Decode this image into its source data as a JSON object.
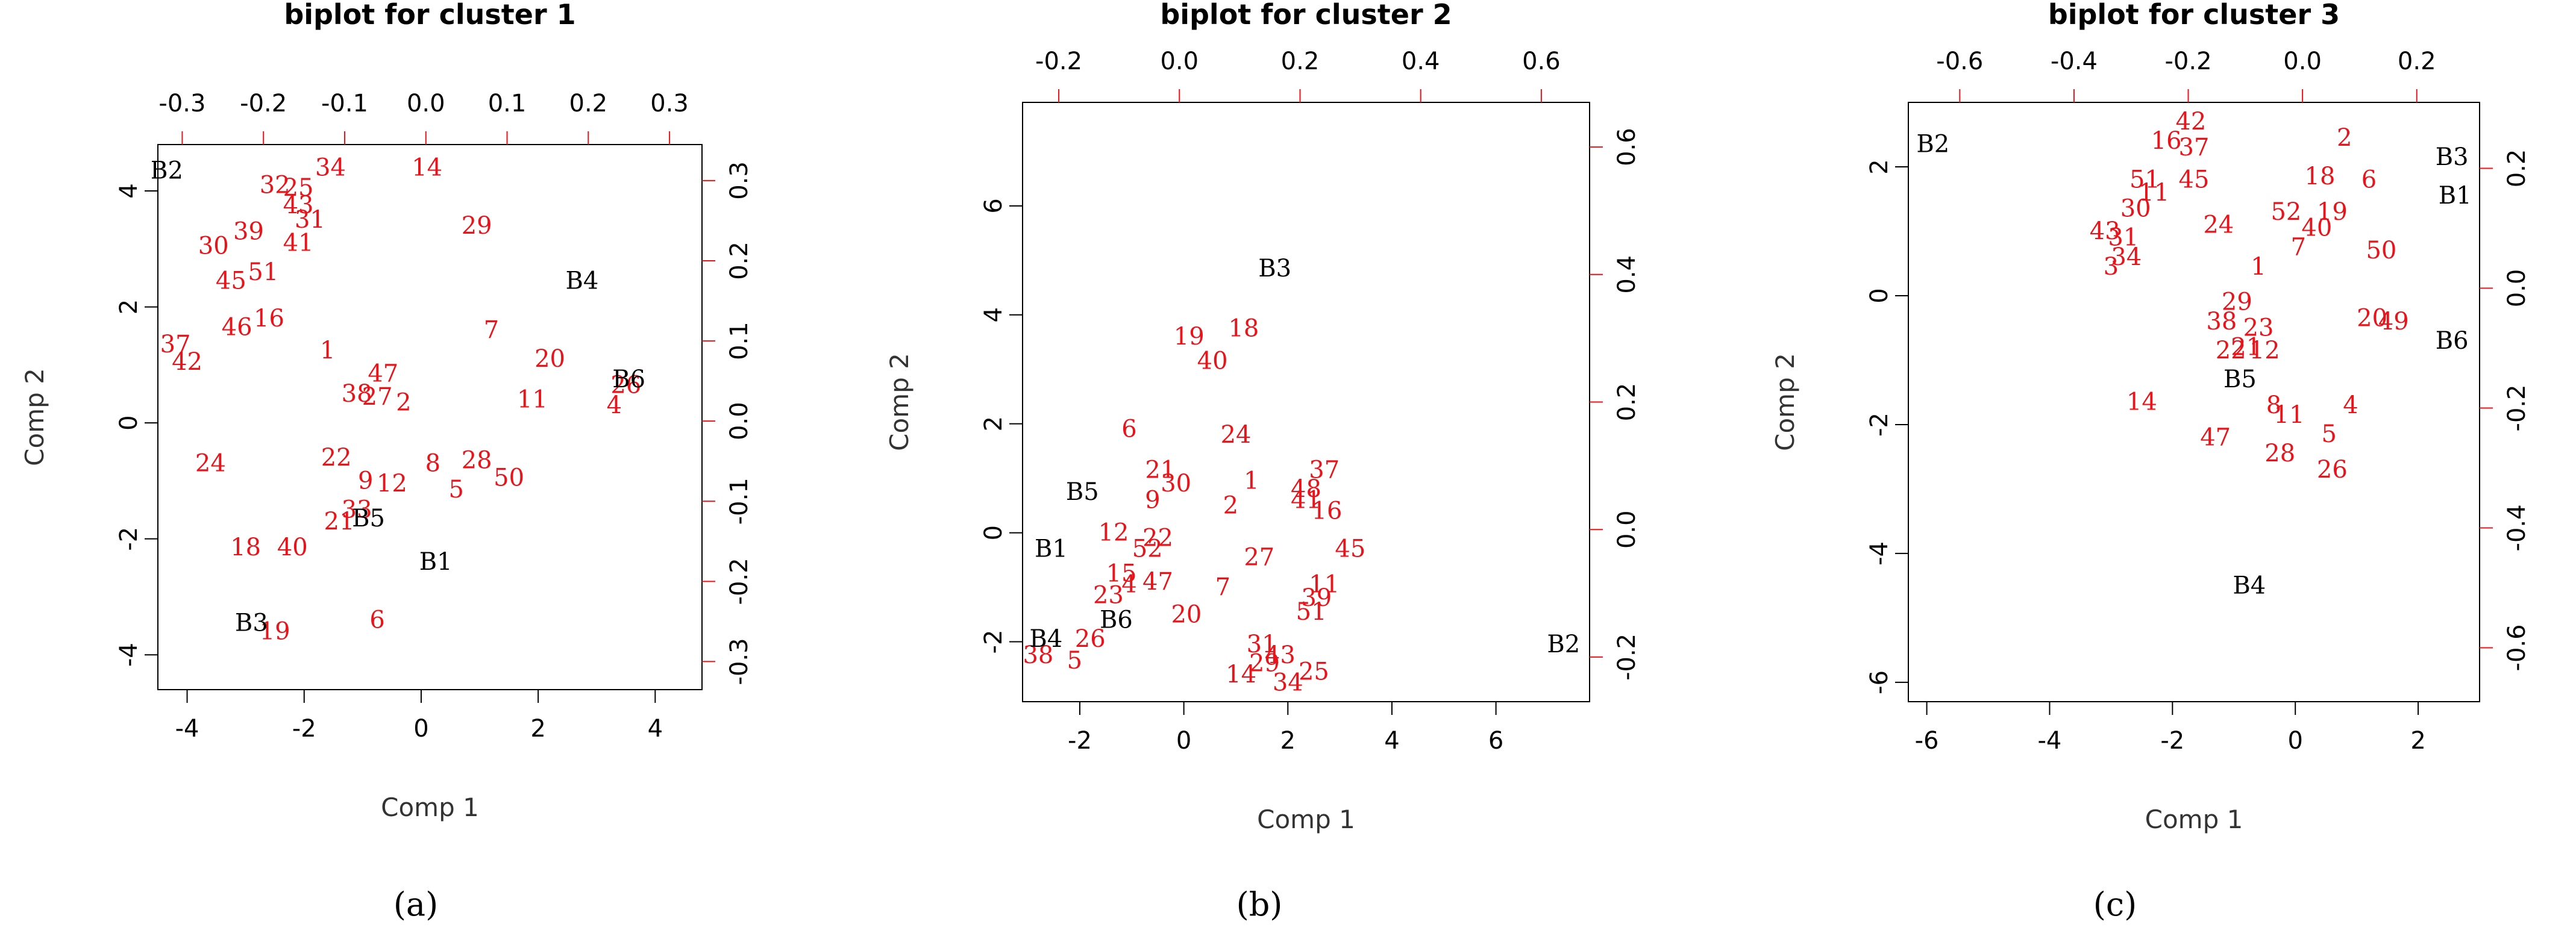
{
  "colors": {
    "observations": "#e8141a",
    "variables": "#000000",
    "secondary_axes": "#e8141a",
    "background": "#ffffff"
  },
  "chart_data": [
    {
      "type": "scatter",
      "subtype": "biplot",
      "panel_label": "(a)",
      "title": "biplot for cluster 1",
      "xlabel": "Comp 1",
      "ylabel": "Comp 2",
      "xlim": [
        -4.5,
        4.8
      ],
      "ylim": [
        -4.6,
        4.8
      ],
      "x_ticks": [
        "-4",
        "-2",
        "0",
        "2",
        "4"
      ],
      "y_ticks": [
        "-4",
        "-2",
        "0",
        "2",
        "4"
      ],
      "top_lim": [
        -0.33,
        0.34
      ],
      "right_lim": [
        -0.335,
        0.345
      ],
      "top_ticks": [
        "-0.3",
        "-0.2",
        "-0.1",
        "0.0",
        "0.1",
        "0.2",
        "0.3"
      ],
      "right_ticks": [
        "-0.3",
        "-0.2",
        "-0.1",
        "0.0",
        "0.1",
        "0.2",
        "0.3"
      ],
      "observations": [
        {
          "label": "32",
          "x": -2.5,
          "y": 4.1
        },
        {
          "label": "25",
          "x": -2.1,
          "y": 4.05
        },
        {
          "label": "34",
          "x": -1.55,
          "y": 4.4
        },
        {
          "label": "14",
          "x": 0.1,
          "y": 4.4
        },
        {
          "label": "43",
          "x": -2.1,
          "y": 3.75
        },
        {
          "label": "31",
          "x": -1.9,
          "y": 3.5
        },
        {
          "label": "39",
          "x": -2.95,
          "y": 3.3
        },
        {
          "label": "30",
          "x": -3.55,
          "y": 3.05
        },
        {
          "label": "41",
          "x": -2.1,
          "y": 3.1
        },
        {
          "label": "29",
          "x": 0.95,
          "y": 3.4
        },
        {
          "label": "45",
          "x": -3.25,
          "y": 2.45
        },
        {
          "label": "51",
          "x": -2.7,
          "y": 2.6
        },
        {
          "label": "46",
          "x": -3.15,
          "y": 1.65
        },
        {
          "label": "16",
          "x": -2.6,
          "y": 1.8
        },
        {
          "label": "37",
          "x": -4.2,
          "y": 1.35
        },
        {
          "label": "42",
          "x": -4.0,
          "y": 1.05
        },
        {
          "label": "1",
          "x": -1.6,
          "y": 1.25
        },
        {
          "label": "7",
          "x": 1.2,
          "y": 1.6
        },
        {
          "label": "20",
          "x": 2.2,
          "y": 1.1
        },
        {
          "label": "47",
          "x": -0.65,
          "y": 0.85
        },
        {
          "label": "38",
          "x": -1.1,
          "y": 0.5
        },
        {
          "label": "27",
          "x": -0.75,
          "y": 0.45
        },
        {
          "label": "2",
          "x": -0.3,
          "y": 0.35
        },
        {
          "label": "11",
          "x": 1.9,
          "y": 0.4
        },
        {
          "label": "26",
          "x": 3.5,
          "y": 0.65
        },
        {
          "label": "4",
          "x": 3.3,
          "y": 0.3
        },
        {
          "label": "24",
          "x": -3.6,
          "y": -0.7
        },
        {
          "label": "22",
          "x": -1.45,
          "y": -0.6
        },
        {
          "label": "9",
          "x": -0.95,
          "y": -1.0
        },
        {
          "label": "12",
          "x": -0.5,
          "y": -1.05
        },
        {
          "label": "8",
          "x": 0.2,
          "y": -0.7
        },
        {
          "label": "28",
          "x": 0.95,
          "y": -0.65
        },
        {
          "label": "50",
          "x": 1.5,
          "y": -0.95
        },
        {
          "label": "5",
          "x": 0.6,
          "y": -1.15
        },
        {
          "label": "33",
          "x": -1.1,
          "y": -1.5
        },
        {
          "label": "21",
          "x": -1.4,
          "y": -1.7
        },
        {
          "label": "18",
          "x": -3.0,
          "y": -2.15
        },
        {
          "label": "40",
          "x": -2.2,
          "y": -2.15
        },
        {
          "label": "6",
          "x": -0.75,
          "y": -3.4
        },
        {
          "label": "19",
          "x": -2.5,
          "y": -3.6
        }
      ],
      "variables": [
        {
          "label": "B2",
          "x": -4.35,
          "y": 4.35
        },
        {
          "label": "B4",
          "x": 2.75,
          "y": 2.45
        },
        {
          "label": "B6",
          "x": 3.55,
          "y": 0.75
        },
        {
          "label": "B5",
          "x": -0.9,
          "y": -1.65
        },
        {
          "label": "B1",
          "x": 0.25,
          "y": -2.4
        },
        {
          "label": "B3",
          "x": -2.9,
          "y": -3.45
        }
      ]
    },
    {
      "type": "scatter",
      "subtype": "biplot",
      "panel_label": "(b)",
      "title": "biplot for cluster 2",
      "xlabel": "Comp 1",
      "ylabel": "Comp 2",
      "xlim": [
        -3.1,
        7.8
      ],
      "ylim": [
        -3.1,
        7.9
      ],
      "x_ticks": [
        "-2",
        "0",
        "2",
        "4",
        "6"
      ],
      "y_ticks": [
        "-2",
        "0",
        "2",
        "4",
        "6"
      ],
      "top_lim": [
        -0.26,
        0.68
      ],
      "right_lim": [
        -0.27,
        0.67
      ],
      "top_ticks": [
        "-0.2",
        "0.0",
        "0.2",
        "0.4",
        "0.6"
      ],
      "right_ticks": [
        "-0.2",
        "0.0",
        "0.2",
        "0.4",
        "0.6"
      ],
      "observations": [
        {
          "label": "19",
          "x": 0.1,
          "y": 3.6
        },
        {
          "label": "18",
          "x": 1.15,
          "y": 3.75
        },
        {
          "label": "40",
          "x": 0.55,
          "y": 3.15
        },
        {
          "label": "6",
          "x": -1.05,
          "y": 1.9
        },
        {
          "label": "24",
          "x": 1.0,
          "y": 1.8
        },
        {
          "label": "21",
          "x": -0.45,
          "y": 1.15
        },
        {
          "label": "30",
          "x": -0.15,
          "y": 0.9
        },
        {
          "label": "9",
          "x": -0.6,
          "y": 0.6
        },
        {
          "label": "1",
          "x": 1.3,
          "y": 0.95
        },
        {
          "label": "2",
          "x": 0.9,
          "y": 0.5
        },
        {
          "label": "37",
          "x": 2.7,
          "y": 1.15
        },
        {
          "label": "48",
          "x": 2.35,
          "y": 0.8
        },
        {
          "label": "41",
          "x": 2.35,
          "y": 0.6
        },
        {
          "label": "16",
          "x": 2.75,
          "y": 0.4
        },
        {
          "label": "45",
          "x": 3.2,
          "y": -0.3
        },
        {
          "label": "12",
          "x": -1.35,
          "y": 0.0
        },
        {
          "label": "22",
          "x": -0.5,
          "y": -0.1
        },
        {
          "label": "52",
          "x": -0.7,
          "y": -0.3
        },
        {
          "label": "27",
          "x": 1.45,
          "y": -0.45
        },
        {
          "label": "15",
          "x": -1.2,
          "y": -0.75
        },
        {
          "label": "4",
          "x": -1.05,
          "y": -0.95
        },
        {
          "label": "47",
          "x": -0.5,
          "y": -0.9
        },
        {
          "label": "7",
          "x": 0.75,
          "y": -1.0
        },
        {
          "label": "23",
          "x": -1.45,
          "y": -1.15
        },
        {
          "label": "20",
          "x": 0.05,
          "y": -1.5
        },
        {
          "label": "11",
          "x": 2.7,
          "y": -0.95
        },
        {
          "label": "39",
          "x": 2.55,
          "y": -1.2
        },
        {
          "label": "51",
          "x": 2.45,
          "y": -1.45
        },
        {
          "label": "26",
          "x": -1.8,
          "y": -1.95
        },
        {
          "label": "38",
          "x": -2.8,
          "y": -2.25
        },
        {
          "label": "5",
          "x": -2.1,
          "y": -2.35
        },
        {
          "label": "31",
          "x": 1.5,
          "y": -2.05
        },
        {
          "label": "43",
          "x": 1.85,
          "y": -2.25
        },
        {
          "label": "29",
          "x": 1.55,
          "y": -2.4
        },
        {
          "label": "25",
          "x": 2.5,
          "y": -2.55
        },
        {
          "label": "14",
          "x": 1.1,
          "y": -2.6
        },
        {
          "label": "34",
          "x": 2.0,
          "y": -2.75
        }
      ],
      "variables": [
        {
          "label": "B3",
          "x": 1.75,
          "y": 4.85
        },
        {
          "label": "B5",
          "x": -1.95,
          "y": 0.75
        },
        {
          "label": "B1",
          "x": -2.55,
          "y": -0.3
        },
        {
          "label": "B6",
          "x": -1.3,
          "y": -1.6
        },
        {
          "label": "B4",
          "x": -2.65,
          "y": -1.95
        },
        {
          "label": "B2",
          "x": 7.3,
          "y": -2.05
        }
      ]
    },
    {
      "type": "scatter",
      "subtype": "biplot",
      "panel_label": "(c)",
      "title": "biplot for cluster 3",
      "xlabel": "Comp 1",
      "ylabel": "Comp 2",
      "xlim": [
        -6.3,
        3.0
      ],
      "ylim": [
        -6.3,
        3.0
      ],
      "x_ticks": [
        "-6",
        "-4",
        "-2",
        "0",
        "2"
      ],
      "y_ticks": [
        "-6",
        "-4",
        "-2",
        "0",
        "2"
      ],
      "top_lim": [
        -0.69,
        0.31
      ],
      "right_lim": [
        -0.69,
        0.31
      ],
      "top_ticks": [
        "-0.6",
        "-0.4",
        "-0.2",
        "0.0",
        "0.2"
      ],
      "right_ticks": [
        "-0.6",
        "-0.4",
        "-0.2",
        "0.0",
        "0.2"
      ],
      "observations": [
        {
          "label": "42",
          "x": -1.7,
          "y": 2.7
        },
        {
          "label": "16",
          "x": -2.1,
          "y": 2.4
        },
        {
          "label": "37",
          "x": -1.65,
          "y": 2.3
        },
        {
          "label": "2",
          "x": 0.8,
          "y": 2.45
        },
        {
          "label": "51",
          "x": -2.45,
          "y": 1.8
        },
        {
          "label": "45",
          "x": -1.65,
          "y": 1.8
        },
        {
          "label": "11",
          "x": -2.3,
          "y": 1.6
        },
        {
          "label": "18",
          "x": 0.4,
          "y": 1.85
        },
        {
          "label": "6",
          "x": 1.2,
          "y": 1.8
        },
        {
          "label": "30",
          "x": -2.6,
          "y": 1.35
        },
        {
          "label": "52",
          "x": -0.15,
          "y": 1.3
        },
        {
          "label": "19",
          "x": 0.6,
          "y": 1.3
        },
        {
          "label": "40",
          "x": 0.35,
          "y": 1.05
        },
        {
          "label": "7",
          "x": 0.05,
          "y": 0.75
        },
        {
          "label": "24",
          "x": -1.25,
          "y": 1.1
        },
        {
          "label": "43",
          "x": -3.1,
          "y": 1.0
        },
        {
          "label": "31",
          "x": -2.8,
          "y": 0.9
        },
        {
          "label": "50",
          "x": 1.4,
          "y": 0.7
        },
        {
          "label": "34",
          "x": -2.75,
          "y": 0.6
        },
        {
          "label": "3",
          "x": -3.0,
          "y": 0.45
        },
        {
          "label": "1",
          "x": -0.6,
          "y": 0.45
        },
        {
          "label": "29",
          "x": -0.95,
          "y": -0.1
        },
        {
          "label": "38",
          "x": -1.2,
          "y": -0.4
        },
        {
          "label": "23",
          "x": -0.6,
          "y": -0.5
        },
        {
          "label": "20",
          "x": 1.25,
          "y": -0.35
        },
        {
          "label": "49",
          "x": 1.6,
          "y": -0.4
        },
        {
          "label": "22",
          "x": -1.05,
          "y": -0.85
        },
        {
          "label": "21",
          "x": -0.8,
          "y": -0.8
        },
        {
          "label": "12",
          "x": -0.5,
          "y": -0.85
        },
        {
          "label": "14",
          "x": -2.5,
          "y": -1.65
        },
        {
          "label": "8",
          "x": -0.35,
          "y": -1.7
        },
        {
          "label": "11",
          "x": -0.1,
          "y": -1.85
        },
        {
          "label": "4",
          "x": 0.9,
          "y": -1.7
        },
        {
          "label": "47",
          "x": -1.3,
          "y": -2.2
        },
        {
          "label": "5",
          "x": 0.55,
          "y": -2.15
        },
        {
          "label": "28",
          "x": -0.25,
          "y": -2.45
        },
        {
          "label": "26",
          "x": 0.6,
          "y": -2.7
        }
      ],
      "variables": [
        {
          "label": "B2",
          "x": -5.9,
          "y": 2.35
        },
        {
          "label": "B3",
          "x": 2.55,
          "y": 2.15
        },
        {
          "label": "B1",
          "x": 2.6,
          "y": 1.55
        },
        {
          "label": "B6",
          "x": 2.55,
          "y": -0.7
        },
        {
          "label": "B5",
          "x": -0.9,
          "y": -1.3
        },
        {
          "label": "B4",
          "x": -0.75,
          "y": -4.5
        }
      ]
    }
  ]
}
